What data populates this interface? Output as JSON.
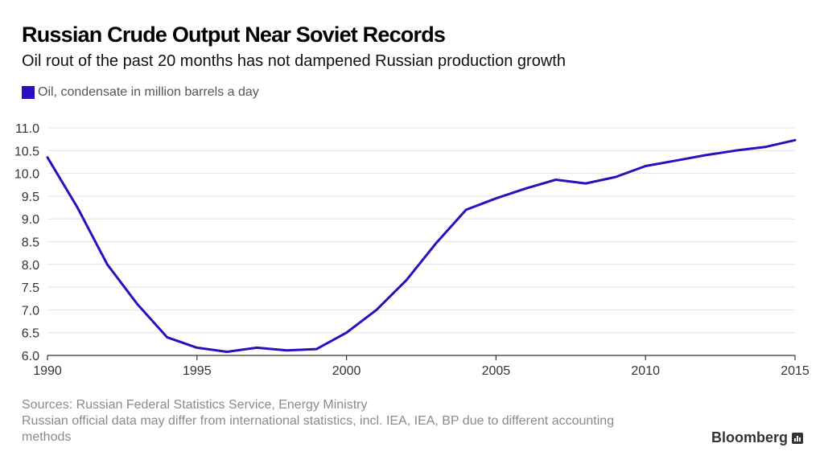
{
  "title": "Russian Crude Output Near Soviet Records",
  "subtitle": "Oil rout of the past 20 months has not dampened Russian production growth",
  "legend": {
    "label": "Oil, condensate in million barrels a day",
    "color": "#2a0fbf"
  },
  "footer": {
    "sources": "Sources: Russian Federal Statistics Service, Energy Ministry",
    "note": "Russian official data may differ from international statistics, incl. IEA, IEA, BP due to different accounting methods"
  },
  "brand": {
    "name": "Bloomberg",
    "icon": "bloomberg-bars-icon"
  },
  "chart_data": {
    "type": "line",
    "title": "Russian Crude Output Near Soviet Records",
    "subtitle": "Oil rout of the past 20 months has not dampened Russian production growth",
    "xlabel": "",
    "ylabel": "",
    "xlim": [
      1990,
      2015
    ],
    "ylim": [
      6.0,
      11.0
    ],
    "x_ticks": [
      "1990",
      "1995",
      "2000",
      "2005",
      "2010",
      "2015"
    ],
    "y_ticks": [
      "6.0",
      "6.5",
      "7.0",
      "7.5",
      "8.0",
      "8.5",
      "9.0",
      "9.5",
      "10.0",
      "10.5",
      "11.0"
    ],
    "grid": "horizontal",
    "legend_position": "top-left",
    "series": [
      {
        "name": "Oil, condensate in million barrels a day",
        "color": "#2a0fbf",
        "x": [
          1990,
          1991,
          1992,
          1993,
          1994,
          1995,
          1996,
          1997,
          1998,
          1999,
          2000,
          2001,
          2002,
          2003,
          2004,
          2005,
          2006,
          2007,
          2008,
          2009,
          2010,
          2011,
          2012,
          2013,
          2014,
          2015
        ],
        "values": [
          10.35,
          9.25,
          8.0,
          7.13,
          6.4,
          6.17,
          6.08,
          6.17,
          6.11,
          6.14,
          6.5,
          7.0,
          7.65,
          8.47,
          9.2,
          9.45,
          9.67,
          9.86,
          9.78,
          9.92,
          10.16,
          10.28,
          10.4,
          10.5,
          10.58,
          10.73
        ]
      }
    ]
  }
}
